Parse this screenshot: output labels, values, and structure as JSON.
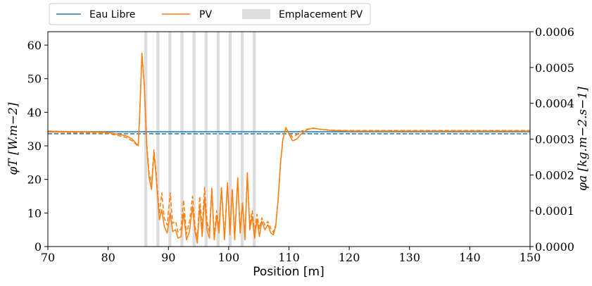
{
  "chart_data": {
    "type": "line",
    "title": "",
    "xlabel": "Position [m]",
    "ylabel_left": "φT [W.m−2]",
    "ylabel_right": "φa [kg.m−2.s−1]",
    "xlim": [
      70,
      150
    ],
    "ylim_left": [
      0,
      64
    ],
    "ylim_right": [
      0,
      0.0006
    ],
    "x_ticks": [
      "70",
      "80",
      "90",
      "100",
      "110",
      "120",
      "130",
      "140",
      "150"
    ],
    "y_ticks_left": [
      "0",
      "10",
      "20",
      "30",
      "40",
      "50",
      "60"
    ],
    "y_ticks_right": [
      "0.0000",
      "0.0001",
      "0.0002",
      "0.0003",
      "0.0004",
      "0.0005",
      "0.0006"
    ],
    "grid": false,
    "legend_position": "top-left",
    "legend": [
      {
        "label": "Eau Libre",
        "kind": "line",
        "color": "#1f77b4"
      },
      {
        "label": "PV",
        "kind": "line",
        "color": "#ff7f0e"
      },
      {
        "label": "Emplacement PV",
        "kind": "patch",
        "color": "#dddddd"
      }
    ],
    "pv_positions": [
      86.5,
      88.5,
      90.5,
      92.5,
      94.5,
      96.5,
      98.5,
      100.5,
      102.5,
      104.5
    ],
    "series": [
      {
        "name": "Eau Libre",
        "axis": "left",
        "style": "solid",
        "color": "#1f77b4",
        "x": [
          70,
          150
        ],
        "y": [
          34.2,
          34.2
        ]
      },
      {
        "name": "Eau Libre",
        "axis": "right",
        "style": "dashed",
        "color": "#1f77b4",
        "x": [
          70,
          150
        ],
        "y": [
          0.000315,
          0.000315
        ]
      },
      {
        "name": "PV",
        "axis": "left",
        "style": "solid",
        "color": "#ff7f0e",
        "x": [
          70,
          80,
          83,
          84,
          85,
          85.3,
          85.6,
          86.0,
          86.4,
          86.8,
          87.2,
          87.6,
          88.0,
          88.5,
          88.9,
          89.3,
          89.8,
          90.3,
          90.7,
          91.2,
          91.6,
          92.1,
          92.5,
          93.0,
          93.5,
          94.0,
          94.4,
          94.8,
          95.2,
          95.6,
          96.0,
          96.4,
          96.8,
          97.2,
          97.6,
          98.0,
          98.4,
          98.8,
          99.3,
          99.8,
          100.2,
          100.6,
          101.0,
          101.5,
          101.9,
          102.3,
          102.7,
          103.1,
          103.5,
          103.9,
          104.3,
          104.7,
          105.1,
          105.5,
          106.0,
          106.5,
          107.0,
          107.4,
          107.8,
          108.2,
          108.6,
          109.0,
          109.5,
          110.0,
          110.6,
          111.3,
          112.0,
          113.0,
          114.0,
          115.0,
          117.0,
          120.0,
          130.0,
          150.0
        ],
        "y": [
          34.4,
          34.0,
          33.0,
          32.0,
          30.0,
          42.0,
          57.5,
          48.0,
          30.0,
          20.5,
          17.0,
          28.0,
          20.0,
          8.0,
          11.0,
          6.0,
          4.0,
          10.0,
          4.5,
          5.0,
          2.5,
          3.0,
          10.0,
          2.0,
          4.5,
          12.0,
          4.5,
          1.0,
          12.0,
          3.0,
          14.5,
          5.0,
          2.5,
          17.0,
          2.0,
          9.0,
          4.0,
          17.5,
          2.0,
          19.0,
          3.5,
          17.0,
          2.0,
          20.5,
          4.0,
          13.0,
          2.0,
          22.0,
          5.0,
          9.0,
          2.5,
          8.0,
          3.0,
          7.5,
          5.0,
          6.5,
          4.0,
          3.5,
          6.0,
          14.0,
          25.0,
          32.0,
          35.5,
          33.5,
          31.5,
          32.0,
          33.5,
          34.8,
          35.3,
          35.0,
          34.6,
          34.4,
          34.4,
          34.4
        ]
      },
      {
        "name": "PV",
        "axis": "right",
        "style": "dashed",
        "color": "#ff7f0e",
        "x": [
          70,
          80,
          83,
          84,
          85,
          85.3,
          85.6,
          86.0,
          86.4,
          86.8,
          87.2,
          87.6,
          88.0,
          88.5,
          88.9,
          89.3,
          89.8,
          90.3,
          90.7,
          91.2,
          91.6,
          92.1,
          92.5,
          93.0,
          93.5,
          94.0,
          94.4,
          94.8,
          95.2,
          95.6,
          96.0,
          96.4,
          96.8,
          97.2,
          97.6,
          98.0,
          98.4,
          98.8,
          99.3,
          99.8,
          100.2,
          100.6,
          101.0,
          101.5,
          101.9,
          102.3,
          102.7,
          103.1,
          103.5,
          103.9,
          104.3,
          104.7,
          105.1,
          105.5,
          106.0,
          106.5,
          107.0,
          107.4,
          107.8,
          108.2,
          108.6,
          109.0,
          109.5,
          110.0,
          110.6,
          111.3,
          112.0,
          113.0,
          114.0,
          115.0,
          117.0,
          120.0,
          130.0,
          150.0
        ],
        "y": [
          0.00032,
          0.000316,
          0.000305,
          0.000295,
          0.00028,
          0.0004,
          0.00054,
          0.00045,
          0.00029,
          0.000205,
          0.000175,
          0.00027,
          0.0002,
          9e-05,
          0.00015,
          8e-05,
          6e-05,
          0.00015,
          6.5e-05,
          7e-05,
          4e-05,
          5e-05,
          0.00013,
          3.5e-05,
          7e-05,
          0.00014,
          6e-05,
          2e-05,
          0.00014,
          5e-05,
          0.000165,
          7e-05,
          4e-05,
          0.000165,
          3e-05,
          0.0001,
          5e-05,
          0.000165,
          3e-05,
          0.000175,
          5e-05,
          0.00016,
          3e-05,
          0.000185,
          5e-05,
          0.00012,
          3e-05,
          0.000205,
          6e-05,
          0.0001,
          4e-05,
          9e-05,
          5e-05,
          8e-05,
          6e-05,
          7e-05,
          5e-05,
          4e-05,
          6e-05,
          0.00013,
          0.00023,
          0.0003,
          0.00033,
          0.000318,
          0.000305,
          0.000312,
          0.000322,
          0.000328,
          0.00033,
          0.000328,
          0.000325,
          0.000324,
          0.000324,
          0.000324
        ]
      }
    ]
  }
}
